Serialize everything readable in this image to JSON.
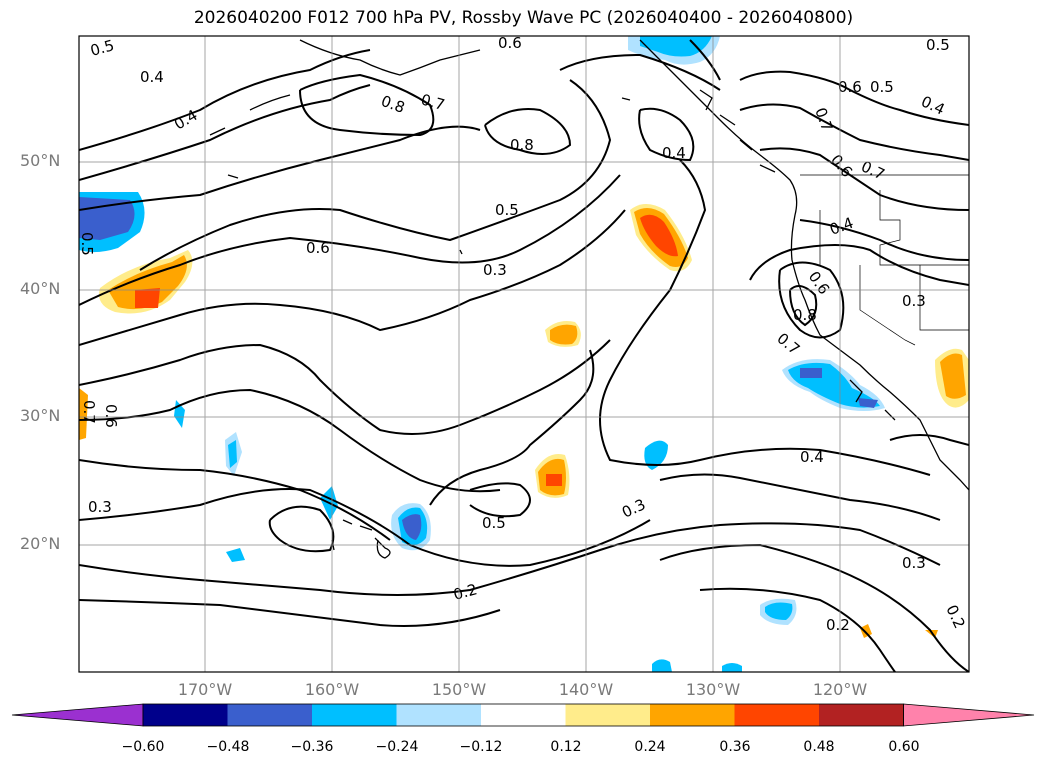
{
  "title": "2026040200 F012 700 hPa PV, Rossby Wave PC (2026040400 - 2026040800)",
  "lat_labels": [
    "50°N",
    "40°N",
    "30°N",
    "20°N"
  ],
  "lon_labels": [
    "170°W",
    "160°W",
    "150°W",
    "140°W",
    "130°W",
    "120°W"
  ],
  "colorbar": {
    "ticks": [
      "−0.60",
      "−0.48",
      "−0.36",
      "−0.24",
      "−0.12",
      "0.12",
      "0.24",
      "0.36",
      "0.48",
      "0.60"
    ],
    "colors": [
      "#9b30d0",
      "#00008b",
      "#3a5fcd",
      "#00bfff",
      "#b0e2ff",
      "#ffffff",
      "#ffec8b",
      "#ffa500",
      "#ff4500",
      "#b22222",
      "#ff82ab"
    ]
  },
  "contour_labels": [
    {
      "id": "c1",
      "text": "0.5"
    },
    {
      "id": "c2",
      "text": "0.4"
    },
    {
      "id": "c3",
      "text": "0.4"
    },
    {
      "id": "c4",
      "text": "0.8"
    },
    {
      "id": "c5",
      "text": "0.7"
    },
    {
      "id": "c6",
      "text": "0.8"
    },
    {
      "id": "c7",
      "text": "0.6"
    },
    {
      "id": "c8",
      "text": "0.4"
    },
    {
      "id": "c9",
      "text": "0.7"
    },
    {
      "id": "c10",
      "text": "0.6"
    },
    {
      "id": "c11",
      "text": "0.5"
    },
    {
      "id": "c12",
      "text": "0.4"
    },
    {
      "id": "c13",
      "text": "0.5"
    },
    {
      "id": "c14",
      "text": "0.6"
    },
    {
      "id": "c15",
      "text": "0.7"
    },
    {
      "id": "c16",
      "text": "0.5"
    },
    {
      "id": "c17",
      "text": "0.6"
    },
    {
      "id": "c18",
      "text": "0.3"
    },
    {
      "id": "c19",
      "text": "0.4"
    },
    {
      "id": "c20",
      "text": "0.6"
    },
    {
      "id": "c21",
      "text": "0.3"
    },
    {
      "id": "c22",
      "text": "0.7"
    },
    {
      "id": "c23",
      "text": "0.8"
    },
    {
      "id": "c24",
      "text": "0.7"
    },
    {
      "id": "c25",
      "text": "0.6"
    },
    {
      "id": "c26",
      "text": "0.3"
    },
    {
      "id": "c27",
      "text": "0.4"
    },
    {
      "id": "c28",
      "text": "0.5"
    },
    {
      "id": "c29",
      "text": "0.3"
    },
    {
      "id": "c30",
      "text": "0.3"
    },
    {
      "id": "c31",
      "text": "0.2"
    },
    {
      "id": "c32",
      "text": "0.2"
    },
    {
      "id": "c33",
      "text": "0.2"
    },
    {
      "id": "c34",
      "text": "0.5"
    }
  ]
}
